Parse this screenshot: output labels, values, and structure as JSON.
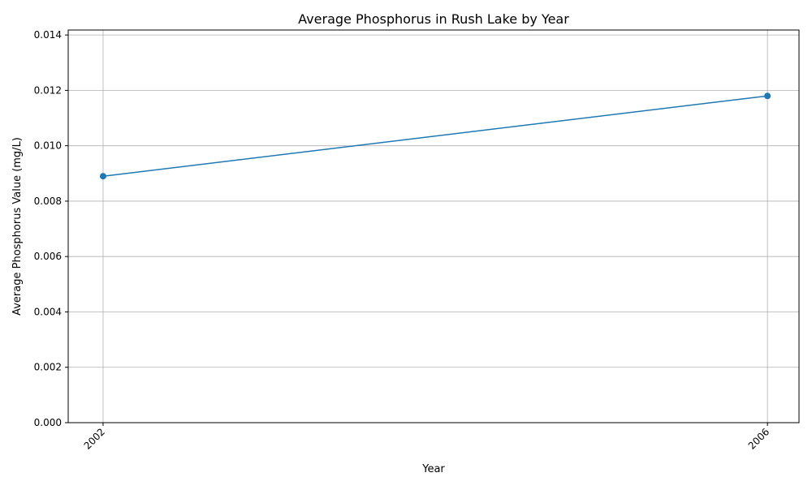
{
  "chart_data": {
    "type": "line",
    "title": "Average Phosphorus in Rush Lake by Year",
    "xlabel": "Year",
    "ylabel": "Average Phosphorus Value (mg/L)",
    "x": [
      2002,
      2006
    ],
    "x_tick_labels": [
      "2002",
      "2006"
    ],
    "series": [
      {
        "values": [
          0.0089,
          0.0118
        ],
        "color": "#1f77b4",
        "marker": "circle"
      }
    ],
    "xlim": [
      2001.79,
      2006.19
    ],
    "ylim": [
      0,
      0.01418
    ],
    "y_ticks": [
      0,
      0.002,
      0.004,
      0.006,
      0.008,
      0.01,
      0.012,
      0.014
    ],
    "y_tick_labels": [
      "0.000",
      "0.002",
      "0.004",
      "0.006",
      "0.008",
      "0.010",
      "0.012",
      "0.014"
    ],
    "grid": true,
    "legend": "none"
  }
}
